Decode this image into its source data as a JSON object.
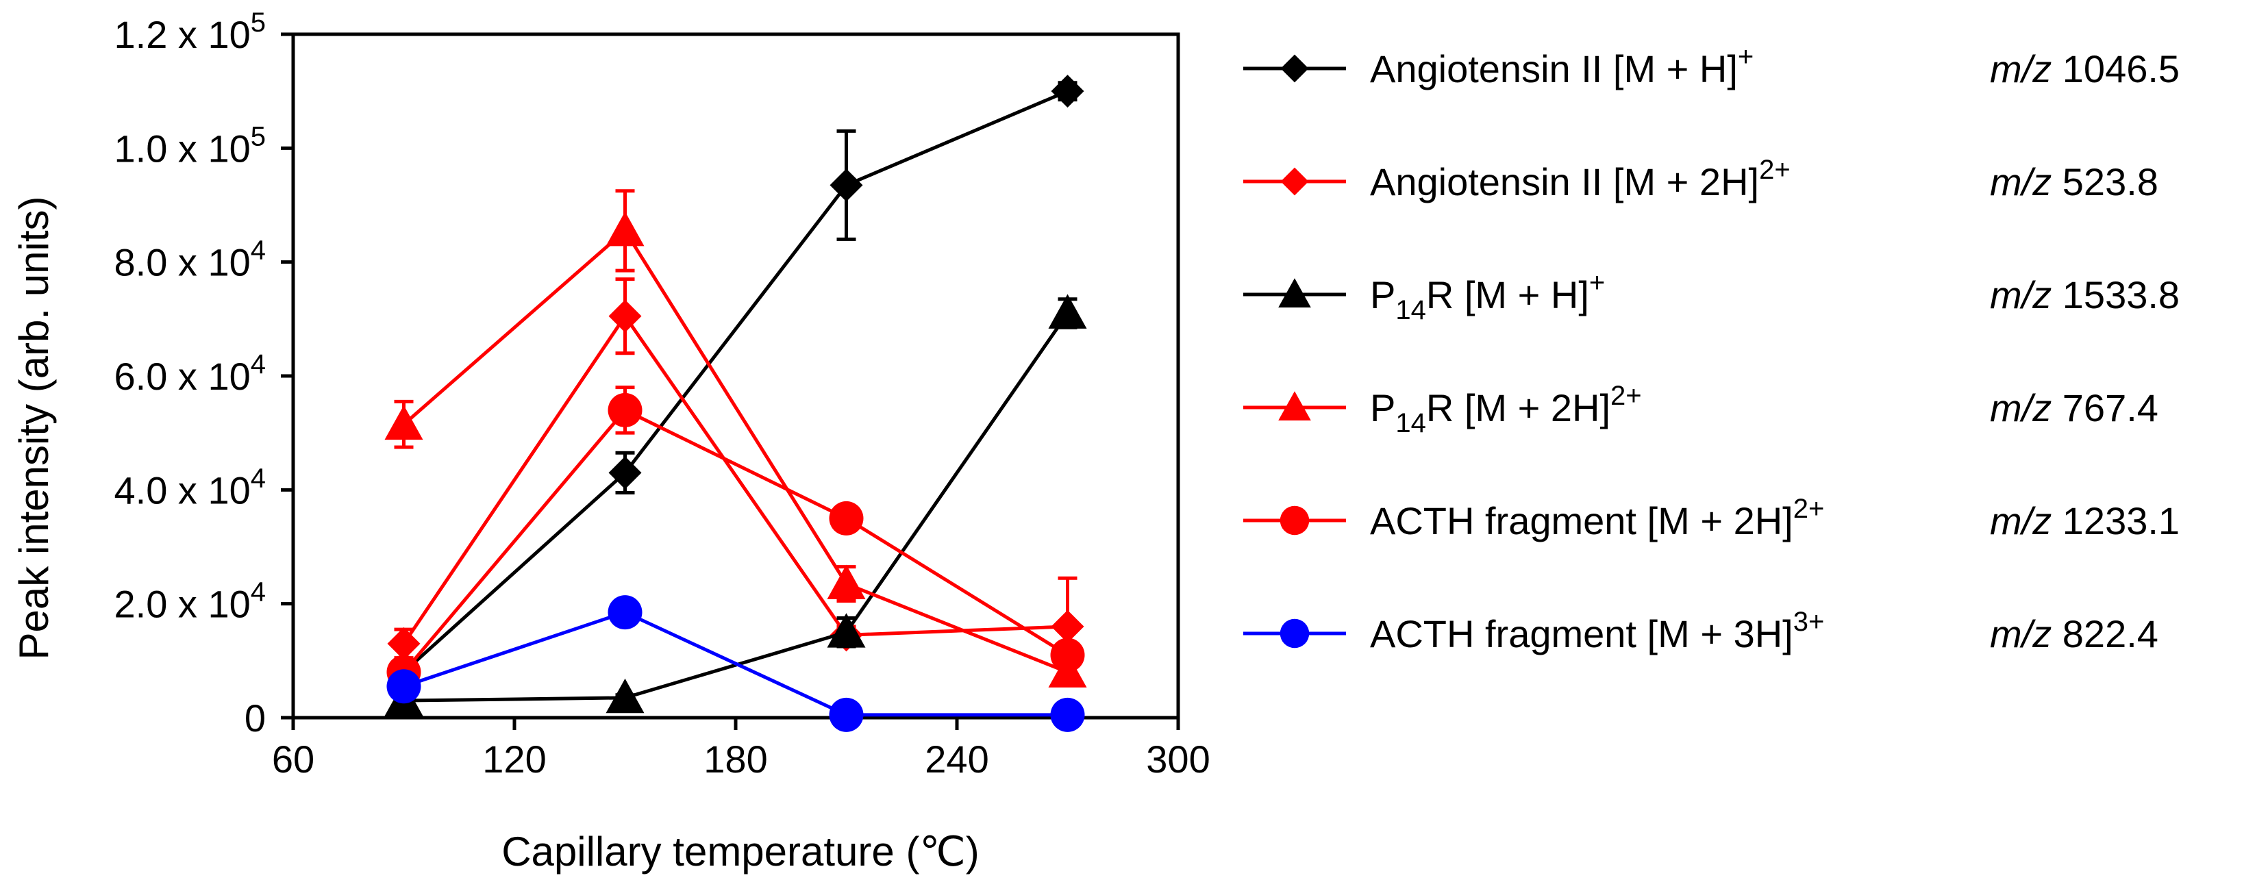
{
  "chart_data": {
    "type": "line",
    "title": "",
    "xlabel": "Capillary temperature (℃)",
    "ylabel": "Peak intensity (arb. units)",
    "xlim": [
      60,
      300
    ],
    "ylim": [
      0,
      120000
    ],
    "xticks": [
      {
        "value": 60,
        "label": "60"
      },
      {
        "value": 120,
        "label": "120"
      },
      {
        "value": 180,
        "label": "180"
      },
      {
        "value": 240,
        "label": "240"
      },
      {
        "value": 300,
        "label": "300"
      }
    ],
    "yticks": [
      {
        "value": 0,
        "label": "0"
      },
      {
        "value": 20000,
        "mantissa": "2.0 x 10",
        "exponent": "4"
      },
      {
        "value": 40000,
        "mantissa": "4.0 x 10",
        "exponent": "4"
      },
      {
        "value": 60000,
        "mantissa": "6.0 x 10",
        "exponent": "4"
      },
      {
        "value": 80000,
        "mantissa": "8.0 x 10",
        "exponent": "4"
      },
      {
        "value": 100000,
        "mantissa": "1.0 x 10",
        "exponent": "5"
      },
      {
        "value": 120000,
        "mantissa": "1.2 x 10",
        "exponent": "5"
      }
    ],
    "grid": false,
    "legend_position": "right",
    "x": [
      90,
      150,
      210,
      270
    ],
    "series": [
      {
        "id": "ang-mh",
        "color": "#000000",
        "marker": "diamond",
        "legend": {
          "base": "Angiotensin II [M + H]",
          "sup": "+",
          "mz_prefix": "m/z",
          "mz_value": "1046.5"
        },
        "values": [
          8000,
          43000,
          93500,
          110000
        ],
        "errors": [
          1500,
          3500,
          9500,
          1500
        ]
      },
      {
        "id": "ang-m2h",
        "color": "#ff0000",
        "marker": "diamond",
        "legend": {
          "base": "Angiotensin II [M + 2H]",
          "sup": "2+",
          "mz_prefix": "m/z",
          "mz_value": "523.8"
        },
        "values": [
          13000,
          70500,
          14500,
          16000
        ],
        "errors": [
          2500,
          6500,
          1500,
          8500
        ]
      },
      {
        "id": "p14r-mh",
        "color": "#000000",
        "marker": "triangle",
        "legend": {
          "pre": "P",
          "sub": "14",
          "post": "R [M + H]",
          "sup": "+",
          "mz_prefix": "m/z",
          "mz_value": "1533.8"
        },
        "values": [
          3000,
          3500,
          15000,
          71000
        ],
        "errors": [
          500,
          500,
          2500,
          2500
        ]
      },
      {
        "id": "p14r-m2h",
        "color": "#ff0000",
        "marker": "triangle",
        "legend": {
          "pre": "P",
          "sub": "14",
          "post": "R [M + 2H]",
          "sup": "2+",
          "mz_prefix": "m/z",
          "mz_value": "767.4"
        },
        "values": [
          51500,
          85500,
          23500,
          8000
        ],
        "errors": [
          4000,
          7000,
          3000,
          1500
        ]
      },
      {
        "id": "acth-m2h",
        "color": "#ff0000",
        "marker": "circle",
        "legend": {
          "base": "ACTH fragment [M + 2H]",
          "sup": "2+",
          "mz_prefix": "m/z",
          "mz_value": "1233.1"
        },
        "values": [
          8000,
          54000,
          35000,
          11000
        ],
        "errors": [
          1500,
          4000,
          1000,
          2000
        ]
      },
      {
        "id": "acth-m3h",
        "color": "#0000ff",
        "marker": "circle",
        "legend": {
          "base": "ACTH fragment [M + 3H]",
          "sup": "3+",
          "mz_prefix": "m/z",
          "mz_value": "822.4"
        },
        "values": [
          5500,
          18500,
          500,
          500
        ],
        "errors": [
          0,
          0,
          0,
          0
        ]
      }
    ]
  }
}
